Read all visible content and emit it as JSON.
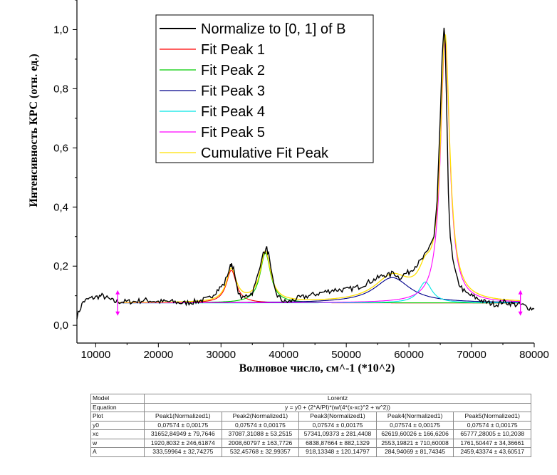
{
  "chart_data": {
    "type": "line",
    "xlabel": "Волновое число, см^-1 (*10^2)",
    "ylabel": "Интенсивность КРС (отн. ед.)",
    "xlim": [
      7000,
      80000
    ],
    "ylim": [
      -0.06,
      1.1
    ],
    "xticks": [
      "10000",
      "20000",
      "30000",
      "40000",
      "50000",
      "60000",
      "70000",
      "80000"
    ],
    "yticks": [
      "0,0",
      "0,2",
      "0,4",
      "0,6",
      "0,8",
      "1,0"
    ],
    "legend_position": "top-center",
    "grid": false,
    "baseline_y0": 0.07574,
    "data_range_markers_x": [
      13500,
      77800
    ],
    "series": [
      {
        "name": "Normalize to [0, 1] of B",
        "color": "#000000",
        "x": [
          7000,
          8000,
          9000,
          10000,
          11000,
          12000,
          13000,
          14000,
          16000,
          18000,
          20000,
          22000,
          24000,
          26000,
          27000,
          28000,
          29000,
          30000,
          30500,
          31000,
          31500,
          31700,
          32000,
          32500,
          33000,
          33500,
          34000,
          35000,
          35500,
          36000,
          36500,
          37000,
          37300,
          37600,
          38000,
          38500,
          39000,
          40000,
          41000,
          42000,
          44000,
          46000,
          48000,
          50000,
          52000,
          54000,
          55000,
          56000,
          57000,
          57500,
          58000,
          58500,
          59000,
          60000,
          61000,
          62000,
          63000,
          63500,
          64000,
          64500,
          65000,
          65300,
          65600,
          65800,
          66000,
          66300,
          66600,
          67000,
          67500,
          68000,
          69000,
          70000,
          71000,
          72000,
          73000,
          74000,
          75000,
          76000,
          77000,
          78000,
          79000,
          80000
        ],
        "y": [
          0.03,
          0.08,
          0.09,
          0.095,
          0.1,
          0.09,
          0.08,
          0.08,
          0.08,
          0.085,
          0.08,
          0.08,
          0.075,
          0.08,
          0.085,
          0.09,
          0.11,
          0.13,
          0.14,
          0.17,
          0.2,
          0.21,
          0.19,
          0.13,
          0.1,
          0.09,
          0.1,
          0.11,
          0.14,
          0.18,
          0.23,
          0.25,
          0.26,
          0.24,
          0.18,
          0.13,
          0.1,
          0.08,
          0.08,
          0.09,
          0.1,
          0.11,
          0.12,
          0.12,
          0.13,
          0.15,
          0.16,
          0.17,
          0.17,
          0.18,
          0.17,
          0.16,
          0.17,
          0.18,
          0.2,
          0.22,
          0.25,
          0.28,
          0.3,
          0.42,
          0.7,
          0.9,
          1.0,
          0.95,
          0.75,
          0.45,
          0.3,
          0.22,
          0.17,
          0.14,
          0.11,
          0.1,
          0.09,
          0.08,
          0.075,
          0.07,
          0.08,
          0.075,
          0.07,
          0.07,
          0.06,
          0.055
        ]
      },
      {
        "name": "Fit Peak 1",
        "color": "#ff0000",
        "peak": 1
      },
      {
        "name": "Fit Peak 2",
        "color": "#00cc00",
        "peak": 2
      },
      {
        "name": "Fit Peak 3",
        "color": "#00008b",
        "peak": 3
      },
      {
        "name": "Fit Peak 4",
        "color": "#00e5e5",
        "peak": 4
      },
      {
        "name": "Fit Peak 5",
        "color": "#ff00ff",
        "peak": 5
      },
      {
        "name": "Cumulative Fit Peak",
        "color": "#ffe000",
        "cumulative": true
      }
    ],
    "peaks": [
      {
        "xc": 31652.84949,
        "w": 1920.8032,
        "A": 333.59964
      },
      {
        "xc": 37087.31088,
        "w": 2008.60797,
        "A": 532.45768
      },
      {
        "xc": 57341.09373,
        "w": 6838.87664,
        "A": 918.13348
      },
      {
        "xc": 62619.60026,
        "w": 2553.19821,
        "A": 284.94069
      },
      {
        "xc": 65777.28005,
        "w": 1761.50447,
        "A": 2459.43374
      }
    ]
  },
  "table": {
    "model_label": "Model",
    "model_value": "Lorentz",
    "equation_label": "Equation",
    "equation_value": "y = y0 + (2*A/PI)*(w/(4*(x-xc)^2 + w^2))",
    "plot_label": "Plot",
    "columns": [
      "Peak1(Normalized1)",
      "Peak2(Normalized1)",
      "Peak3(Normalized1)",
      "Peak4(Normalized1)",
      "Peak5(Normalized1)"
    ],
    "rows": [
      {
        "label": "y0",
        "values": [
          "0,07574 ± 0,00175",
          "0,07574 ± 0,00175",
          "0,07574 ± 0,00175",
          "0,07574 ± 0,00175",
          "0,07574 ± 0,00175"
        ]
      },
      {
        "label": "xc",
        "values": [
          "31652,84949 ± 79,7646",
          "37087,31088 ± 53,2515",
          "57341,09373 ± 281,4408",
          "62619,60026 ± 166,6206",
          "65777,28005 ± 10,2038"
        ]
      },
      {
        "label": "w",
        "values": [
          "1920,8032 ± 246,61874",
          "2008,60797 ± 163,7726",
          "6838,87664 ± 882,1329",
          "2553,19821 ± 710,60008",
          "1761,50447 ± 34,36661"
        ]
      },
      {
        "label": "A",
        "values": [
          "333,59964 ± 32,74275",
          "532,45768 ± 32,99357",
          "918,13348 ± 120,14797",
          "284,94069 ± 81,74345",
          "2459,43374 ± 43,60517"
        ]
      }
    ]
  }
}
